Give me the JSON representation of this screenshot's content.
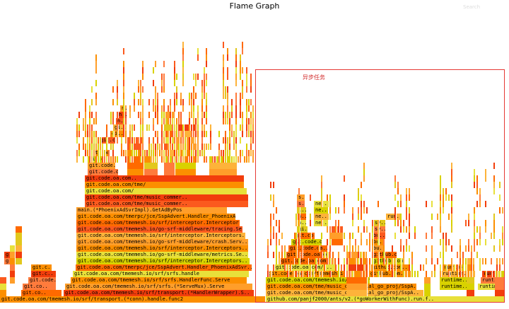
{
  "header": {
    "title": "Flame Graph",
    "search_label": "Search"
  },
  "annotation": {
    "label": "异步任务"
  },
  "palette": [
    "#ff6a00",
    "#f23d0c",
    "#ff9e2a",
    "#e2c81c",
    "#fc8f00",
    "#e8e03a",
    "#fb5a1e",
    "#fdb33a",
    "#d9d200",
    "#ff7b3c"
  ],
  "frames_left": [
    "git.code.oa.com/tmemesh.io/srf/transport.(*conn).handle.func2",
    "git.code.oa.com/tmemesh.io/srf/transport.(*HandlerWrapper).S..",
    "git.code.oa.com/tmemesh.io/srf/srfs.(*ServeMux).Serve",
    "git.code.oa.com/tmemesh.io/srf/srfs.HandlerFunc.Serve",
    "git.code.oa.com/tmemesh.io/srf/srfs.handle",
    "git.code.oa.com/tmerpc/jce/SspAdvert.Handler_PhoenixAdSvr..",
    "git.code.oa.com/tmemesh.io/srf/interceptor.Interceptors..",
    "git.code.oa.com/tmemesh.io/go-srf-middleware/metrics.Se..",
    "git.code.oa.com/tmemesh.io/srf/interceptor.Interceptors..",
    "git.code.oa.com/tmemesh.io/go-srf-middleware/crash.Serv..",
    "git.code.oa.com/tmemesh.io/srf/interceptor.Interceptors..",
    "git.code.oa.com/tmemesh.io/go-srf-middleware/tracing.Se..",
    "git.code.oa.com/tmemesh.io/srf/interceptor.Interceptor..",
    "git.code.oa.com/tmerpc/jce/SspAdvert.Handler_PhoenixAd..",
    "main.(*PhoenixAdSvrImpl).GetAdByPos",
    "git.code.oa.com/tme/music_commer..",
    "git.code.oa.com/tme/music_commer..",
    "git.code.oa.com/",
    "git.code.oa.com/tme/",
    "git.code.oa.com.."
  ],
  "frames_side": [
    "git.co..",
    "git.co..",
    "git.code..",
    "git.c..",
    "git.c..",
    "g..",
    "g.."
  ],
  "frames_sub": [
    "git.code.oa.com/..",
    "git.code.oa.co..",
    "git.code.oa.com/..",
    "git.code..",
    "git.co..",
    "git.c..",
    "gi..",
    "gi..",
    "n..",
    "n..",
    "n.."
  ],
  "frames_async": [
    "github.com/panjf2000/ants/v2.(*goWorkerWithFunc).run.f..",
    "git.code.oa.com/tme/music_commercial_go_proj/SspA..",
    "git.code.oa.com/tme/music_commercial_go_proj/SspA..",
    "git.code.oa.com/tmemesh.io/redis.(*Redis).Do",
    "git.code.oa.com/tmemesh.io/..",
    "git.code.oa.com/t..",
    "git.code.oa.com/..",
    "git.code.oa.co..",
    "git.code.oa...",
    "git.code.o..",
    "git.co..",
    "gi.."
  ],
  "frames_async_mid": [
    "ne..",
    "ne..",
    "ne..",
    "ne..",
    "n..",
    "n..",
    "i..",
    "s..",
    "s.."
  ],
  "frames_async_right": [
    "github.com..",
    "github.com..",
    "github.com/..",
    "github.co..",
    "bu..",
    "bu..",
    "bu..",
    "sy..",
    "sy..",
    "run.."
  ],
  "frames_runtime": [
    "runtime..",
    "runtime..",
    "runtime..",
    "runtime..",
    "runtime.mc..",
    "runtime..",
    "runti.."
  ]
}
